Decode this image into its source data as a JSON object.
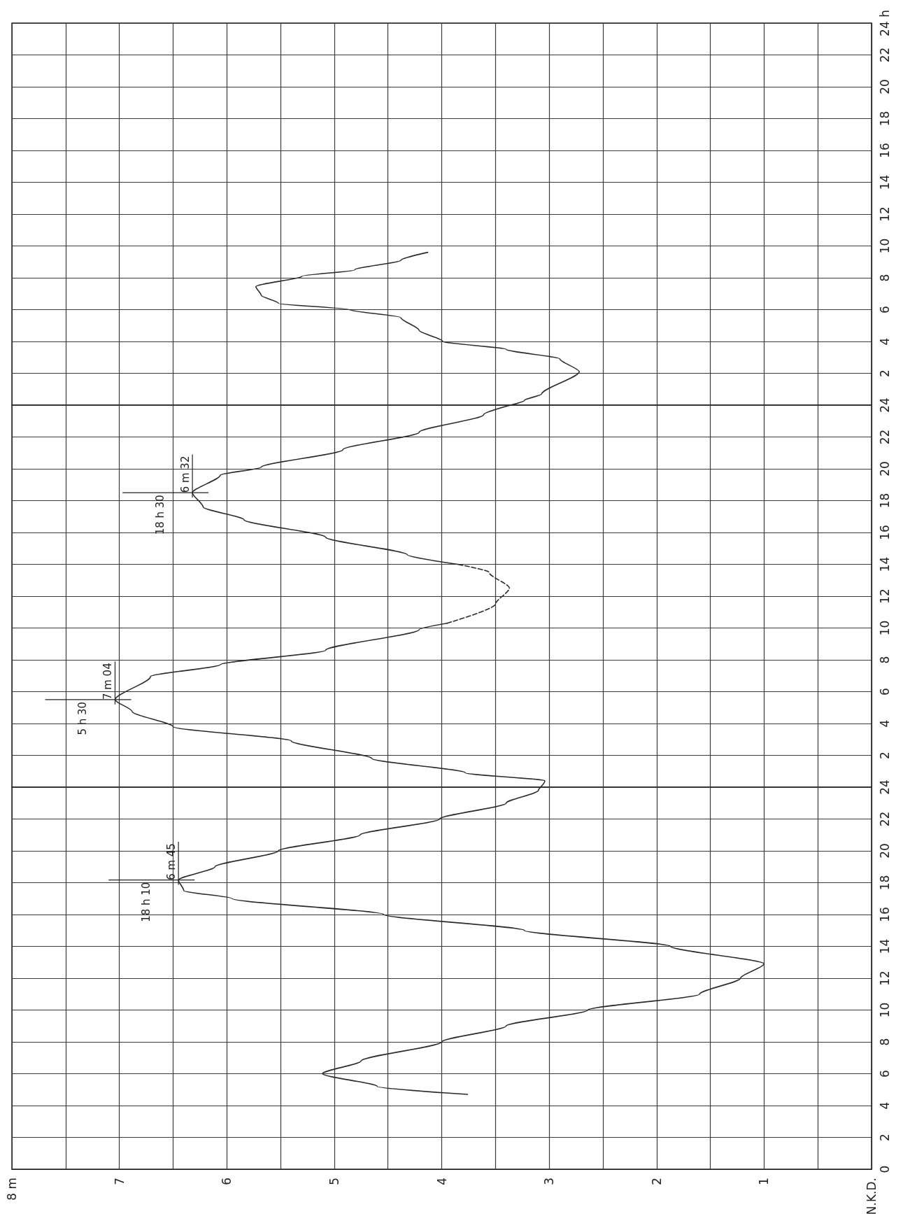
{
  "chart_data": [
    {
      "type": "line",
      "marker": "none",
      "grid": true,
      "tick_labels": "y",
      "xlim": [
        8,
        0
      ],
      "xticks": [
        {
          "value": 8,
          "label": null
        },
        {
          "value": 7.5,
          "label": null
        },
        {
          "value": 7,
          "label": null
        },
        {
          "value": 6.5,
          "label": null
        },
        {
          "value": 6,
          "label": null
        },
        {
          "value": 5.5,
          "label": null
        },
        {
          "value": 5,
          "label": null
        },
        {
          "value": 4.5,
          "label": null
        },
        {
          "value": 4,
          "label": null
        },
        {
          "value": 3.5,
          "label": null
        },
        {
          "value": 3,
          "label": null
        },
        {
          "value": 2.5,
          "label": null
        },
        {
          "value": 2,
          "label": null
        },
        {
          "value": 1.5,
          "label": null
        },
        {
          "value": 1,
          "label": null
        },
        {
          "value": 0.5,
          "label": null
        },
        {
          "value": 0,
          "label": null
        }
      ],
      "ylim": [
        0,
        24
      ],
      "yticks": [
        2,
        4,
        6,
        8,
        10,
        12,
        14,
        16,
        18,
        20,
        22,
        {
          "value": 24,
          "label": "24 h"
        }
      ],
      "series": [
        {
          "color": "#2b2b2b",
          "x": [
            3.36,
            3.23,
            3.07,
            2.72,
            2.9,
            3.4,
            3.99,
            4.21,
            4.38,
            4.86,
            5.52,
            5.68,
            5.73,
            5.3,
            4.81,
            4.38,
            4.13
          ],
          "values": [
            0,
            0.3,
            0.7,
            2.1,
            2.9,
            3.5,
            4,
            4.7,
            5.5,
            6,
            6.4,
            6.9,
            7.45,
            8.1,
            8.5,
            9.1,
            9.6
          ]
        }
      ]
    },
    {
      "type": "line",
      "marker": "none",
      "grid": true,
      "tick_labels": "y",
      "xlim": [
        8,
        0
      ],
      "xticks": [
        {
          "value": 8,
          "label": null
        },
        {
          "value": 7.5,
          "label": null
        },
        {
          "value": 7,
          "label": null
        },
        {
          "value": 6.5,
          "label": null
        },
        {
          "value": 6,
          "label": null
        },
        {
          "value": 5.5,
          "label": null
        },
        {
          "value": 5,
          "label": null
        },
        {
          "value": 4.5,
          "label": null
        },
        {
          "value": 4,
          "label": null
        },
        {
          "value": 3.5,
          "label": null
        },
        {
          "value": 3,
          "label": null
        },
        {
          "value": 2.5,
          "label": null
        },
        {
          "value": 2,
          "label": null
        },
        {
          "value": 1.5,
          "label": null
        },
        {
          "value": 1,
          "label": null
        },
        {
          "value": 0.5,
          "label": null
        },
        {
          "value": 0,
          "label": null
        }
      ],
      "ylim": [
        0,
        24
      ],
      "yticks": [
        2,
        4,
        6,
        8,
        10,
        12,
        14,
        16,
        18,
        20,
        22,
        24
      ],
      "series": [
        {
          "color": "#2b2b2b",
          "line_style": "solid",
          "x": [
            3.08,
            3.04,
            3.78,
            4.65,
            5.4,
            6.5,
            6.88,
            7.04,
            6.71,
            6.06,
            5.08,
            4.21,
            3.95
          ],
          "values": [
            0,
            0.4,
            0.9,
            1.8,
            2.9,
            3.8,
            4.75,
            5.5,
            6.95,
            7.7,
            8.6,
            9.9,
            10.3
          ]
        },
        {
          "color": "#2b2b2b",
          "line_style": "dashed",
          "x": [
            3.95,
            3.5,
            3.37,
            3.56,
            3.85
          ],
          "values": [
            10.3,
            11.5,
            12.5,
            13.5,
            14
          ]
        },
        {
          "color": "#2b2b2b",
          "line_style": "solid",
          "x": [
            3.85,
            4.32,
            5.08,
            5.84,
            6.22,
            6.32,
            6.06,
            5.68,
            4.92,
            4.21,
            3.61,
            3.36
          ],
          "values": [
            14,
            14.6,
            15.7,
            16.8,
            17.6,
            18.5,
            19.6,
            20.1,
            21.2,
            22.3,
            23.4,
            24
          ]
        }
      ],
      "annotations": [
        {
          "text": "5 h 30",
          "x": 7.04,
          "y": 5.5
        },
        {
          "text": "7 m 04",
          "x": 7.04,
          "y": 5.5
        },
        {
          "text": "18 h 30",
          "x": 6.32,
          "y": 18.5
        },
        {
          "text": "6 m 32",
          "x": 6.32,
          "y": 18.5
        }
      ]
    },
    {
      "type": "line",
      "marker": "none",
      "grid": true,
      "xlim": [
        8,
        0
      ],
      "xticks": [
        {
          "value": 8,
          "label": "8 m"
        },
        {
          "value": 7.5,
          "label": null
        },
        7,
        {
          "value": 6.5,
          "label": null
        },
        6,
        {
          "value": 5.5,
          "label": null
        },
        5,
        {
          "value": 4.5,
          "label": null
        },
        4,
        {
          "value": 3.5,
          "label": null
        },
        3,
        {
          "value": 2.5,
          "label": null
        },
        2,
        {
          "value": 1.5,
          "label": null
        },
        1,
        {
          "value": 0.5,
          "label": null
        },
        {
          "value": 0,
          "label": "N.K.D."
        }
      ],
      "ylim": [
        0,
        24
      ],
      "yticks": [
        0,
        2,
        4,
        6,
        8,
        10,
        12,
        14,
        16,
        18,
        20,
        22,
        24
      ],
      "series": [
        {
          "color": "#2b2b2b",
          "x": [
            3.76,
            4.6,
            5.11,
            4.75,
            4.0,
            3.4,
            2.64,
            1.6,
            1.22,
            1.0,
            1.87,
            3.23,
            4.54,
            5.95,
            6.4,
            6.45,
            6.11,
            5.52,
            4.76,
            4.02,
            3.4,
            3.1,
            3.08
          ],
          "values": [
            4.7,
            5.2,
            6.0,
            6.8,
            8,
            9,
            10,
            11,
            12,
            12.9,
            14,
            15,
            16,
            17,
            17.5,
            18.17,
            19,
            20,
            21,
            22,
            23,
            23.8,
            24
          ]
        }
      ],
      "annotations": [
        {
          "text": "18 h 10",
          "x": 6.45,
          "y": 18.17
        },
        {
          "text": "6 m 45",
          "x": 6.45,
          "y": 18.17
        }
      ]
    }
  ]
}
